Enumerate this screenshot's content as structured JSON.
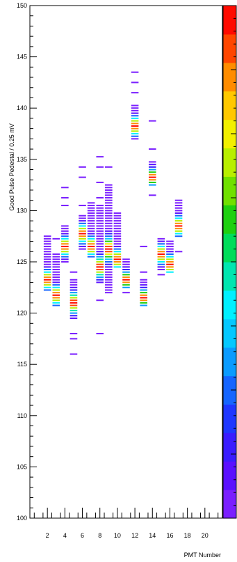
{
  "chart_data": {
    "type": "heatmap",
    "xlabel": "PMT Number",
    "ylabel": "Good Pulse Pedestal / 0.25 mV",
    "xlim": [
      0,
      22
    ],
    "ylim": [
      100,
      150
    ],
    "x_ticks": [
      2,
      4,
      6,
      8,
      10,
      12,
      14,
      16,
      18,
      20
    ],
    "y_ticks": [
      100,
      105,
      110,
      115,
      120,
      125,
      130,
      135,
      140,
      145,
      150
    ],
    "bin_width": 1,
    "bin_height": 0.25,
    "colorbar": true,
    "palette": [
      "#7a1fff",
      "#5a10ff",
      "#3a1cff",
      "#1f37ff",
      "#1565ff",
      "#0b9bff",
      "#05c8ff",
      "#00f0ff",
      "#00e6b0",
      "#00dc5a",
      "#1ed010",
      "#70e000",
      "#b8ef00",
      "#f2f000",
      "#ffc800",
      "#ff8c00",
      "#ff4600",
      "#ff0a00"
    ],
    "columns": [
      {
        "x": 2,
        "y_min": 122.25,
        "y_max": 127.5,
        "peak": 123.25,
        "sigma": 0.8,
        "stray": []
      },
      {
        "x": 3,
        "y_min": 120.75,
        "y_max": 125.75,
        "peak": 121.75,
        "sigma": 0.8,
        "stray": [
          127.25
        ]
      },
      {
        "x": 4,
        "y_min": 125.0,
        "y_max": 128.5,
        "peak": 126.5,
        "sigma": 0.8,
        "stray": [
          132.25,
          131.25,
          130.5
        ]
      },
      {
        "x": 5,
        "y_min": 119.5,
        "y_max": 123.25,
        "peak": 121.0,
        "sigma": 0.9,
        "stray": [
          124.0,
          118.0,
          117.5,
          116.0
        ]
      },
      {
        "x": 6,
        "y_min": 126.25,
        "y_max": 129.5,
        "peak": 127.75,
        "sigma": 0.8,
        "stray": [
          134.25,
          133.25,
          130.5
        ]
      },
      {
        "x": 7,
        "y_min": 125.5,
        "y_max": 130.75,
        "peak": 126.5,
        "sigma": 0.8,
        "stray": []
      },
      {
        "x": 8,
        "y_min": 123.0,
        "y_max": 130.5,
        "peak": 124.5,
        "sigma": 0.9,
        "stray": [
          135.25,
          134.25,
          132.75,
          131.25,
          121.25,
          118.0
        ]
      },
      {
        "x": 9,
        "y_min": 122.0,
        "y_max": 132.5,
        "peak": 126.25,
        "sigma": 1.0,
        "stray": [
          134.25
        ]
      },
      {
        "x": 10,
        "y_min": 124.5,
        "y_max": 129.75,
        "peak": 125.25,
        "sigma": 0.8,
        "stray": []
      },
      {
        "x": 11,
        "y_min": 122.5,
        "y_max": 125.25,
        "peak": 123.25,
        "sigma": 0.7,
        "stray": [
          122.0
        ]
      },
      {
        "x": 12,
        "y_min": 137.25,
        "y_max": 140.25,
        "peak": 138.25,
        "sigma": 0.8,
        "stray": [
          143.5,
          142.5,
          141.5,
          137.0
        ]
      },
      {
        "x": 13,
        "y_min": 120.75,
        "y_max": 123.25,
        "peak": 121.5,
        "sigma": 0.7,
        "stray": [
          124.0,
          126.5
        ]
      },
      {
        "x": 14,
        "y_min": 132.5,
        "y_max": 134.75,
        "peak": 133.25,
        "sigma": 0.7,
        "stray": [
          136.0,
          131.5,
          138.75
        ]
      },
      {
        "x": 15,
        "y_min": 124.25,
        "y_max": 127.25,
        "peak": 125.75,
        "sigma": 0.8,
        "stray": [
          123.75
        ]
      },
      {
        "x": 16,
        "y_min": 124.0,
        "y_max": 127.0,
        "peak": 124.75,
        "sigma": 0.8,
        "stray": []
      },
      {
        "x": 17,
        "y_min": 127.5,
        "y_max": 130.75,
        "peak": 128.5,
        "sigma": 0.8,
        "stray": [
          131.0,
          126.0
        ]
      }
    ]
  }
}
